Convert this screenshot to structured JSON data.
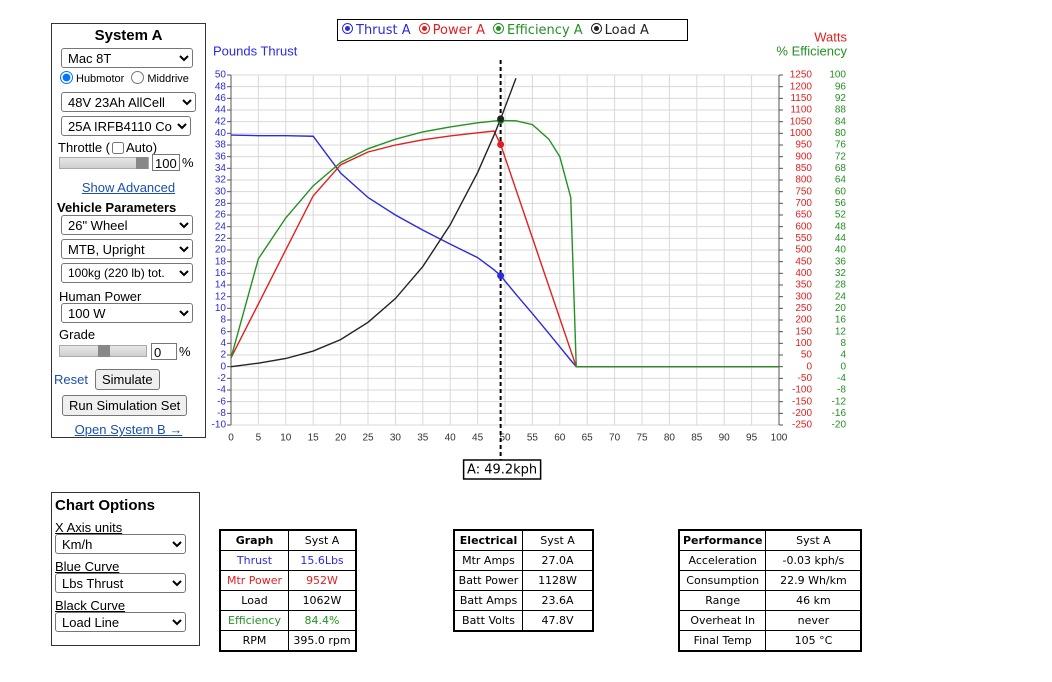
{
  "system_panel": {
    "title": "System A",
    "motor": "Mac 8T",
    "motor_types": [
      "Hubmotor",
      "Middrive"
    ],
    "battery": "48V 23Ah AllCell",
    "controller": "25A IRFB4110 Co",
    "throttle_label": "Throttle (",
    "auto_label": "Auto)",
    "throttle_value": 100,
    "throttle_unit": "%",
    "show_advanced": "Show Advanced",
    "vehicle_heading": "Vehicle Parameters",
    "wheel": "26\"  Wheel",
    "frame": "MTB, Upright",
    "mass": "100kg (220 lb) tot.",
    "human_power_label": "Human Power",
    "human_power": "100 W",
    "grade_label": "Grade",
    "grade_value": 0,
    "grade_unit": "%",
    "reset": "Reset",
    "simulate": "Simulate",
    "run_set": "Run Simulation Set",
    "open_b": "Open System B →"
  },
  "chart": {
    "type": "line",
    "y_label": "Pounds Thrust",
    "y2_label": "Watts",
    "y3_label": "% Efficiency",
    "grid": true,
    "x": [
      0,
      5,
      10,
      15,
      20,
      25,
      30,
      35,
      40,
      45,
      48,
      49.2,
      52,
      55,
      58,
      60,
      62,
      63,
      70,
      80,
      90,
      100
    ],
    "xlim": [
      0,
      100
    ],
    "xticks": [
      0,
      5,
      10,
      15,
      20,
      25,
      30,
      35,
      40,
      45,
      50,
      55,
      60,
      65,
      70,
      75,
      80,
      85,
      90,
      95,
      100
    ],
    "ylim": [
      -10,
      50
    ],
    "yticks": [
      -10,
      -8,
      -6,
      -4,
      -2,
      0,
      2,
      4,
      6,
      8,
      10,
      12,
      14,
      16,
      18,
      20,
      22,
      24,
      26,
      28,
      30,
      32,
      34,
      36,
      38,
      40,
      42,
      44,
      46,
      48,
      50
    ],
    "y2lim": [
      -250,
      1250
    ],
    "y2ticks": [
      -250,
      -200,
      -150,
      -100,
      -50,
      0,
      50,
      100,
      150,
      200,
      250,
      300,
      350,
      400,
      450,
      500,
      550,
      600,
      650,
      700,
      750,
      800,
      850,
      900,
      950,
      1000,
      1050,
      1100,
      1150,
      1200,
      1250
    ],
    "y3lim": [
      -20,
      100
    ],
    "y3ticks": [
      -20,
      -16,
      -12,
      -8,
      -4,
      0,
      4,
      8,
      12,
      16,
      20,
      24,
      28,
      32,
      36,
      40,
      44,
      48,
      52,
      56,
      60,
      64,
      68,
      72,
      76,
      80,
      84,
      88,
      92,
      96,
      100
    ],
    "series": [
      {
        "name": "Thrust A",
        "color": "#2b2bdd",
        "axis": "y",
        "values": [
          39.7,
          39.6,
          39.6,
          39.5,
          33.2,
          29,
          26,
          23.4,
          21,
          18.7,
          16.6,
          15.6,
          12.4,
          9.1,
          5.7,
          3.4,
          1.1,
          0,
          0,
          0,
          0,
          0
        ]
      },
      {
        "name": "Power A",
        "color": "#e02020",
        "axis": "y2",
        "values": [
          38,
          269,
          501,
          732,
          865,
          920,
          950,
          972,
          989,
          1002,
          1010,
          952,
          759,
          552,
          345,
          207,
          69,
          0,
          0,
          0,
          0,
          0
        ]
      },
      {
        "name": "Efficiency A",
        "color": "#239123",
        "axis": "y3",
        "values": [
          3,
          37,
          51,
          62,
          70,
          74.7,
          78,
          80.5,
          82.2,
          83.6,
          84.2,
          84.4,
          84.3,
          83,
          78,
          72,
          58,
          0,
          0,
          0,
          0,
          0
        ]
      },
      {
        "name": "Load A",
        "color": "#222222",
        "axis": "y2",
        "values": [
          0,
          15,
          35,
          67,
          116,
          190,
          292,
          429,
          608,
          832,
          992,
          1062,
          1236,
          null,
          null,
          null,
          null,
          null,
          null,
          null,
          null,
          null
        ]
      }
    ],
    "cursor": {
      "x": 49.2,
      "label": "A: 49.2kph"
    }
  },
  "chart_options": {
    "title": "Chart Options",
    "fields": [
      {
        "label": "X Axis units",
        "value": "Km/h"
      },
      {
        "label": "Blue Curve",
        "value": "Lbs Thrust"
      },
      {
        "label": "Black Curve",
        "value": "Load Line"
      }
    ]
  },
  "tables": [
    {
      "header": [
        "Graph",
        "Syst A"
      ],
      "rows": [
        [
          "Thrust",
          "15.6Lbs"
        ],
        [
          "Mtr Power",
          "952W"
        ],
        [
          "Load",
          "1062W"
        ],
        [
          "Efficiency",
          "84.4%"
        ],
        [
          "RPM",
          "395.0 rpm"
        ]
      ],
      "colors": [
        "#2b2bdd",
        "#e02020",
        "#000000",
        "#239123",
        "#000000"
      ]
    },
    {
      "header": [
        "Electrical",
        "Syst A"
      ],
      "rows": [
        [
          "Mtr Amps",
          "27.0A"
        ],
        [
          "Batt Power",
          "1128W"
        ],
        [
          "Batt Amps",
          "23.6A"
        ],
        [
          "Batt Volts",
          "47.8V"
        ]
      ],
      "colors": [
        "#000000",
        "#000000",
        "#000000",
        "#000000"
      ]
    },
    {
      "header": [
        "Performance",
        "Syst A"
      ],
      "rows": [
        [
          "Acceleration",
          "-0.03 kph/s"
        ],
        [
          "Consumption",
          "22.9 Wh/km"
        ],
        [
          "Range",
          "46 km"
        ],
        [
          "Overheat In",
          "never"
        ],
        [
          "Final Temp",
          "105 °C"
        ]
      ],
      "colors": [
        "#000000",
        "#000000",
        "#000000",
        "#000000",
        "#000000"
      ]
    }
  ]
}
